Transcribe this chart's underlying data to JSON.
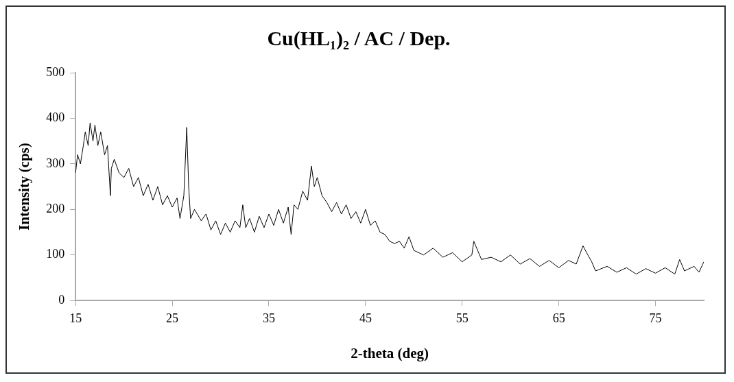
{
  "chart_data": {
    "type": "line",
    "title": "Cu(HL₁)₂ / AC / Dep.",
    "xlabel": "2-theta (deg)",
    "ylabel": "Intensity (cps)",
    "xlim": [
      15,
      80
    ],
    "xticks": [
      15,
      25,
      35,
      45,
      55,
      65,
      75
    ],
    "ylim": [
      0,
      500
    ],
    "yticks": [
      0,
      100,
      200,
      300,
      400,
      500
    ],
    "grid": false,
    "legend": false,
    "marker": "none",
    "line_style": "solid",
    "series": [
      {
        "color": "#000000",
        "x": [
          15,
          15.2,
          15.5,
          15.8,
          16,
          16.3,
          16.5,
          16.8,
          17,
          17.3,
          17.6,
          18,
          18.3,
          18.6,
          18.7,
          19,
          19.5,
          20,
          20.5,
          21,
          21.5,
          22,
          22.5,
          23,
          23.5,
          24,
          24.5,
          25,
          25.5,
          25.8,
          26.2,
          26.5,
          26.7,
          26.9,
          27.3,
          28,
          28.5,
          29,
          29.5,
          30,
          30.5,
          31,
          31.5,
          32,
          32.3,
          32.6,
          33,
          33.5,
          34,
          34.5,
          35,
          35.5,
          36,
          36.5,
          37,
          37.3,
          37.6,
          38,
          38.5,
          39,
          39.4,
          39.7,
          40,
          40.5,
          41,
          41.5,
          42,
          42.5,
          43,
          43.5,
          44,
          44.5,
          45,
          45.5,
          46,
          46.5,
          47,
          47.5,
          48,
          48.5,
          49,
          49.5,
          50,
          51,
          52,
          53,
          54,
          55,
          56,
          56.2,
          57,
          58,
          59,
          60,
          61,
          62,
          63,
          64,
          65,
          66,
          66.8,
          67.5,
          68,
          68.4,
          68.8,
          70,
          71,
          72,
          73,
          74,
          75,
          76,
          77,
          77.5,
          78,
          79,
          79.5,
          80
        ],
        "values": [
          280,
          320,
          300,
          340,
          370,
          340,
          390,
          350,
          385,
          340,
          370,
          320,
          340,
          230,
          290,
          310,
          280,
          270,
          290,
          250,
          270,
          230,
          255,
          220,
          250,
          210,
          230,
          205,
          225,
          180,
          230,
          380,
          250,
          180,
          200,
          175,
          190,
          155,
          175,
          145,
          170,
          150,
          175,
          160,
          210,
          160,
          180,
          150,
          185,
          160,
          190,
          165,
          200,
          170,
          205,
          145,
          210,
          200,
          240,
          220,
          295,
          250,
          270,
          230,
          215,
          195,
          215,
          190,
          210,
          180,
          195,
          170,
          200,
          165,
          175,
          150,
          145,
          130,
          125,
          130,
          115,
          140,
          110,
          100,
          115,
          95,
          105,
          85,
          100,
          130,
          90,
          95,
          85,
          100,
          80,
          92,
          75,
          88,
          72,
          88,
          80,
          120,
          100,
          85,
          65,
          75,
          62,
          72,
          58,
          70,
          60,
          72,
          58,
          90,
          65,
          75,
          62,
          85
        ]
      }
    ]
  }
}
